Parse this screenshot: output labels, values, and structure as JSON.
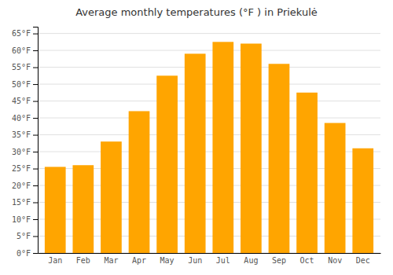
{
  "chart_data": {
    "type": "bar",
    "title": "Average monthly temperatures (°F ) in Priekulė",
    "categories": [
      "Jan",
      "Feb",
      "Mar",
      "Apr",
      "May",
      "Jun",
      "Jul",
      "Aug",
      "Sep",
      "Oct",
      "Nov",
      "Dec"
    ],
    "values": [
      25.5,
      26.0,
      33.0,
      42.0,
      52.5,
      59.0,
      62.5,
      62.0,
      56.0,
      47.5,
      38.5,
      31.0
    ],
    "color": "#FFA500",
    "ylim": [
      0,
      67
    ],
    "yticks": [
      {
        "value": 0,
        "label": "0°F"
      },
      {
        "value": 5,
        "label": "5°F"
      },
      {
        "value": 10,
        "label": "10°F"
      },
      {
        "value": 15,
        "label": "15°F"
      },
      {
        "value": 20,
        "label": "20°F"
      },
      {
        "value": 25,
        "label": "25°F"
      },
      {
        "value": 30,
        "label": "30°F"
      },
      {
        "value": 35,
        "label": "35°F"
      },
      {
        "value": 40,
        "label": "40°F"
      },
      {
        "value": 45,
        "label": "45°F"
      },
      {
        "value": 50,
        "label": "50°F"
      },
      {
        "value": 55,
        "label": "55°F"
      },
      {
        "value": 60,
        "label": "60°F"
      },
      {
        "value": 65,
        "label": "65°F"
      }
    ],
    "grid": true
  }
}
